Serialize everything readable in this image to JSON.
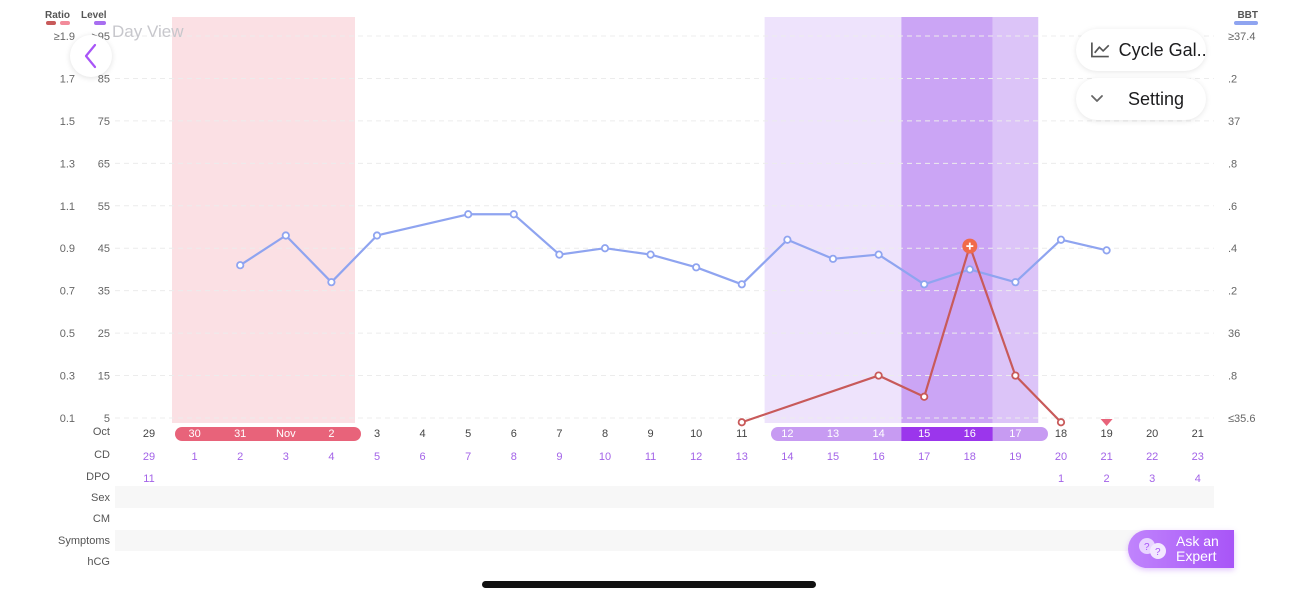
{
  "header": {
    "title": "Day View",
    "back_icon": "chevron-left-icon",
    "cycle_button": "Cycle Gal...",
    "setting_button": "Setting",
    "ask_expert": [
      "Ask an",
      "Expert"
    ]
  },
  "legend": {
    "ratio_label": "Ratio",
    "level_label": "Level",
    "bbt_label": "BBT",
    "ratio_colors": [
      "#c85a5a",
      "#f28b9a"
    ],
    "level_color": "#a86ef0",
    "bbt_color": "#8fa4f0"
  },
  "chart_data": {
    "type": "line",
    "title": "",
    "ratio_ticks": [
      "≥1.9",
      "1.7",
      "1.5",
      "1.3",
      "1.1",
      "0.9",
      "0.7",
      "0.5",
      "0.3",
      "0.1"
    ],
    "level_ticks": [
      ">95",
      "85",
      "75",
      "65",
      "55",
      "45",
      "35",
      "25",
      "15",
      "5"
    ],
    "bbt_ticks": [
      "≥37.4",
      ".2",
      "37",
      ".8",
      ".6",
      ".4",
      ".2",
      "36",
      ".8",
      "≤35.6"
    ],
    "ylim_ratio": [
      0.1,
      1.9
    ],
    "ylim_bbt": [
      35.6,
      37.4
    ],
    "date_labels": [
      "29",
      "30",
      "31",
      "Nov",
      "2",
      "3",
      "4",
      "5",
      "6",
      "7",
      "8",
      "9",
      "10",
      "11",
      "12",
      "13",
      "14",
      "15",
      "16",
      "17",
      "18",
      "19",
      "20",
      "21"
    ],
    "date_row_label": "Oct",
    "cd": [
      "29",
      "1",
      "2",
      "3",
      "4",
      "5",
      "6",
      "7",
      "8",
      "9",
      "10",
      "11",
      "12",
      "13",
      "14",
      "15",
      "16",
      "17",
      "18",
      "19",
      "20",
      "21",
      "22",
      "23"
    ],
    "dpo": [
      "11",
      "",
      "",
      "",
      "",
      "",
      "",
      "",
      "",
      "",
      "",
      "",
      "",
      "",
      "",
      "",
      "",
      "",
      "",
      "",
      "1",
      "2",
      "3",
      "4"
    ],
    "row_labels": [
      "Oct",
      "CD",
      "DPO",
      "Sex",
      "CM",
      "Symptoms",
      "hCG"
    ],
    "period_range": [
      1,
      4
    ],
    "fertile_range": [
      14,
      19
    ],
    "peak_range": [
      17,
      18
    ],
    "today_index": 21,
    "series": [
      {
        "color": "#8fa4f0",
        "axis": "bbt",
        "points": [
          [
            2,
            36.32
          ],
          [
            3,
            36.46
          ],
          [
            4,
            36.24
          ],
          [
            5,
            36.46
          ],
          [
            7,
            36.56
          ],
          [
            8,
            36.56
          ],
          [
            9,
            36.37
          ],
          [
            10,
            36.4
          ],
          [
            11,
            36.37
          ],
          [
            12,
            36.31
          ],
          [
            13,
            36.23
          ],
          [
            14,
            36.44
          ],
          [
            15,
            36.35
          ],
          [
            16,
            36.37
          ],
          [
            17,
            36.23
          ],
          [
            18,
            36.3
          ],
          [
            19,
            36.24
          ],
          [
            20,
            36.44
          ],
          [
            21,
            36.39
          ]
        ]
      },
      {
        "color": "#c85a5a",
        "axis": "ratio",
        "points": [
          [
            13,
            0.08
          ],
          [
            16,
            0.3
          ],
          [
            17,
            0.2
          ],
          [
            18,
            0.91
          ],
          [
            19,
            0.3
          ],
          [
            20,
            0.08
          ]
        ],
        "peak_index": 18
      }
    ]
  }
}
